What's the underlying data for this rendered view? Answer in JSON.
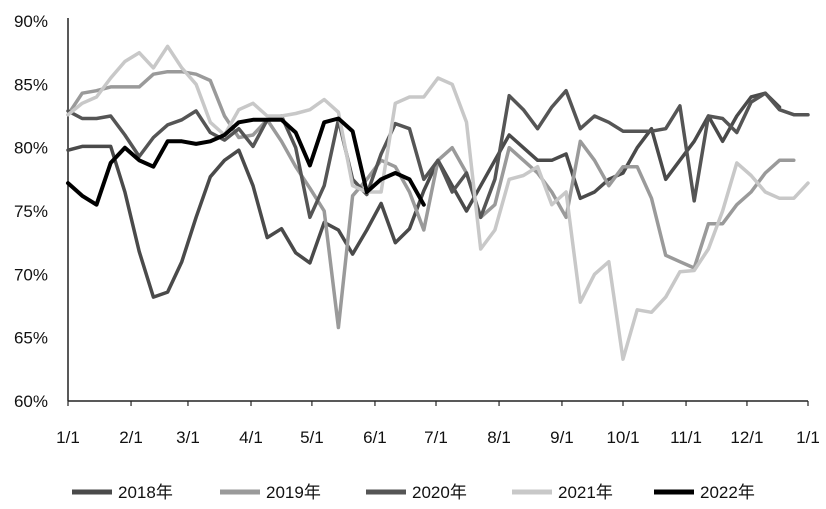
{
  "chart_data": {
    "type": "line",
    "x_unit": "week",
    "x_range": [
      0,
      52
    ],
    "ylim": [
      60,
      90
    ],
    "yticks": [
      "60%",
      "65%",
      "70%",
      "75%",
      "80%",
      "85%",
      "90%"
    ],
    "y_values": [
      60,
      65,
      70,
      75,
      80,
      85,
      90
    ],
    "xticks": [
      "1/1",
      "2/1",
      "3/1",
      "4/1",
      "5/1",
      "6/1",
      "7/1",
      "8/1",
      "9/1",
      "10/1",
      "11/1",
      "12/1",
      "1/1"
    ],
    "xtick_positions": [
      0,
      4.43,
      8.43,
      12.86,
      17.14,
      21.57,
      25.86,
      30.29,
      34.71,
      39.0,
      43.43,
      47.71,
      52.0
    ],
    "grid": false,
    "legend": "bottom",
    "series": [
      {
        "name": "2018年",
        "color": "#4a4a4a",
        "values": [
          79.8,
          80.1,
          80.1,
          80.1,
          76.5,
          71.8,
          68.2,
          68.6,
          71.0,
          74.5,
          77.7,
          79.0,
          79.8,
          77.0,
          72.9,
          73.6,
          71.7,
          70.9,
          74.1,
          73.5,
          71.6,
          73.5,
          75.6,
          72.5,
          73.6,
          76.6,
          79.0,
          77.0,
          75.0,
          77.0,
          79.0,
          81.0,
          80.0,
          79.0,
          79.0,
          79.5,
          76.0,
          76.5,
          77.5,
          78.0,
          80.0,
          81.5,
          77.5,
          79.0,
          80.5,
          82.5,
          80.5,
          82.5,
          84.0,
          84.3,
          83.2
        ]
      },
      {
        "name": "2019年",
        "color": "#9a9a9a",
        "values": [
          82.6,
          84.3,
          84.5,
          84.8,
          84.8,
          84.8,
          85.8,
          86.0,
          86.0,
          85.8,
          85.3,
          82.5,
          80.8,
          81.0,
          82.2,
          80.5,
          78.5,
          76.8,
          75.0,
          65.8,
          76.2,
          77.5,
          79.0,
          78.5,
          76.5,
          73.5,
          79.0,
          80.0,
          78.0,
          74.5,
          75.5,
          80.0,
          79.0,
          78.0,
          76.5,
          74.5,
          80.5,
          79.0,
          77.0,
          78.5,
          78.5,
          76.0,
          71.5,
          71.0,
          70.5,
          74.0,
          74.0,
          75.5,
          76.5,
          78.0,
          79.0,
          79.0
        ]
      },
      {
        "name": "2020年",
        "color": "#555555",
        "values": [
          82.9,
          82.3,
          82.3,
          82.5,
          81.0,
          79.3,
          80.8,
          81.8,
          82.2,
          82.9,
          81.2,
          80.6,
          81.5,
          80.1,
          82.2,
          82.5,
          80.0,
          74.5,
          77.0,
          82.2,
          77.5,
          76.3,
          79.5,
          81.9,
          81.5,
          77.5,
          79.0,
          76.5,
          78.0,
          74.5,
          77.5,
          84.1,
          83.0,
          81.5,
          83.2,
          84.5,
          81.5,
          82.5,
          82.0,
          81.3,
          81.3,
          81.3,
          81.5,
          83.3,
          75.8,
          82.5,
          82.3,
          81.2,
          83.6,
          84.3,
          83.0,
          82.6,
          82.6
        ]
      },
      {
        "name": "2021年",
        "color": "#c8c8c8",
        "values": [
          82.6,
          83.5,
          84.0,
          85.5,
          86.8,
          87.5,
          86.3,
          88.0,
          86.3,
          85.0,
          82.0,
          81.0,
          83.0,
          83.5,
          82.5,
          82.5,
          82.7,
          83.0,
          83.8,
          82.8,
          77.0,
          76.5,
          76.5,
          83.5,
          84.0,
          84.0,
          85.5,
          85.0,
          82.0,
          72.0,
          73.5,
          77.5,
          77.8,
          78.5,
          75.5,
          76.5,
          67.8,
          70.0,
          71.0,
          63.3,
          67.2,
          67.0,
          68.2,
          70.2,
          70.3,
          72.0,
          75.0,
          78.8,
          77.8,
          76.5,
          76.0,
          76.0,
          77.2
        ]
      },
      {
        "name": "2022年",
        "color": "#000000",
        "values": [
          77.2,
          76.2,
          75.5,
          78.8,
          80.0,
          79.0,
          78.5,
          80.5,
          80.5,
          80.3,
          80.5,
          81.0,
          82.0,
          82.2,
          82.2,
          82.2,
          81.2,
          78.6,
          82.0,
          82.3,
          81.3,
          76.5,
          77.5,
          78.0,
          77.5,
          75.5
        ]
      }
    ]
  }
}
